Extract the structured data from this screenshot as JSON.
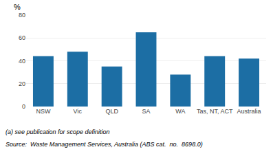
{
  "chart_data": {
    "type": "bar",
    "ylabel": "%",
    "categories": [
      "NSW",
      "Vic",
      "QLD",
      "SA",
      "WA",
      "Tas, NT, ACT",
      "Australia"
    ],
    "values": [
      44,
      48,
      35,
      65,
      28,
      44,
      42
    ],
    "color": "#1c6ea4",
    "ylim": [
      0,
      80
    ],
    "yticks": [
      0,
      20,
      40,
      60,
      80
    ],
    "grid": true,
    "annotations": [
      "(a) see publication for scope definition",
      "Source:  Waste Management Services, Australia (ABS cat.  no.  8698.0)"
    ]
  }
}
